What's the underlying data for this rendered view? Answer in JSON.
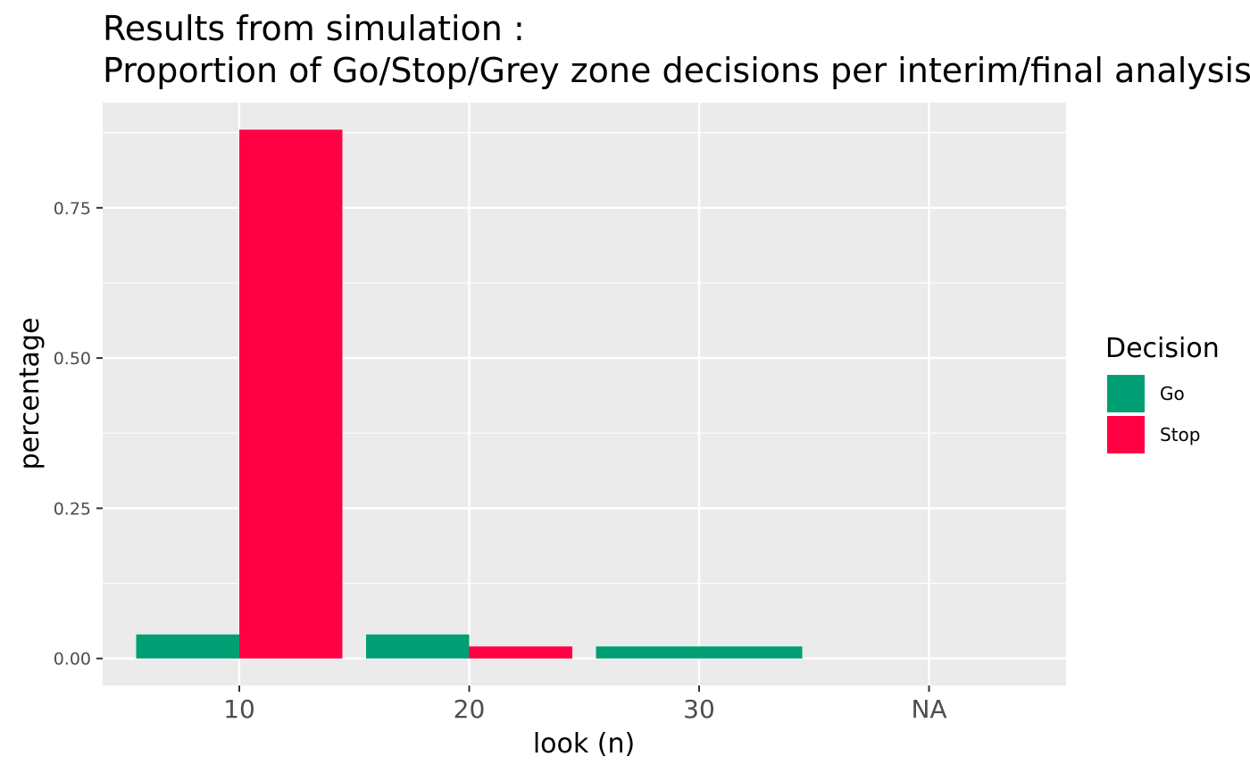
{
  "chart_data": {
    "type": "bar",
    "title": "Results from simulation :",
    "subtitle": "Proportion of Go/Stop/Grey zone decisions per interim/final analysis",
    "xlabel": "look (n)",
    "ylabel": "percentage",
    "categories": [
      "10",
      "20",
      "30",
      "NA"
    ],
    "series": [
      {
        "name": "Go",
        "color": "#009E73",
        "values": [
          0.04,
          0.04,
          0.02,
          null
        ]
      },
      {
        "name": "Stop",
        "color": "#FF0044",
        "values": [
          0.88,
          0.02,
          null,
          null
        ]
      }
    ],
    "bar_note_30": "single Go bar spans full dodge width at 30",
    "y_ticks": [
      "0.00",
      "0.25",
      "0.50",
      "0.75"
    ],
    "ylim": [
      -0.045,
      0.925
    ],
    "legend": {
      "title": "Decision",
      "position": "right",
      "entries": [
        "Go",
        "Stop"
      ]
    },
    "panel_background": "#EBEBEB",
    "gridline_color": "#FFFFFF",
    "grid": true
  }
}
